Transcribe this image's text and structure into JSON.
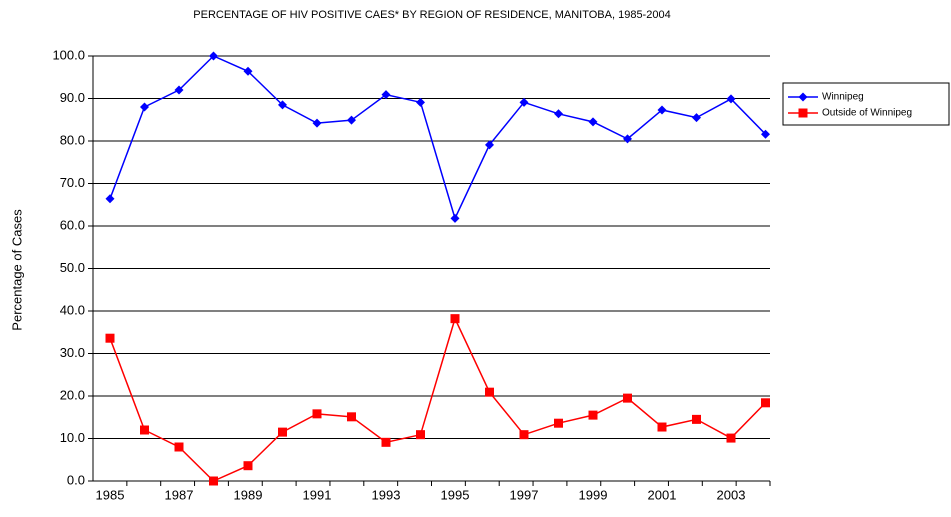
{
  "chart_data": {
    "type": "line",
    "title": "PERCENTAGE OF HIV POSITIVE CAES* BY REGION OF RESIDENCE, MANITOBA, 1985-2004",
    "y_label": "Percentage of Cases",
    "categories": [
      "1985",
      null,
      "1987",
      null,
      "1989",
      null,
      "1991",
      null,
      "1993",
      null,
      "1995",
      null,
      "1997",
      null,
      "1999",
      null,
      "2001",
      null,
      "2003",
      null
    ],
    "series": [
      {
        "name": "Winnipeg",
        "color": "#0000ff",
        "marker": "diamond",
        "values": [
          66.4,
          88.0,
          92.0,
          100.0,
          96.4,
          88.5,
          84.2,
          84.9,
          90.9,
          89.1,
          61.8,
          79.1,
          89.1,
          86.4,
          84.5,
          80.5,
          87.3,
          85.5,
          89.9,
          81.6
        ]
      },
      {
        "name": "Outside of Winnipeg",
        "color": "#ff0000",
        "marker": "square",
        "values": [
          33.6,
          12.0,
          8.0,
          0.0,
          3.6,
          11.5,
          15.8,
          15.1,
          9.1,
          10.9,
          38.2,
          20.9,
          10.9,
          13.6,
          15.5,
          19.5,
          12.7,
          14.5,
          10.1,
          18.4
        ]
      }
    ],
    "ylim": [
      0,
      100
    ],
    "yticks": [
      {
        "value": 0,
        "label": "0.0"
      },
      {
        "value": 10,
        "label": "10.0"
      },
      {
        "value": 20,
        "label": "20.0"
      },
      {
        "value": 30,
        "label": "30.0"
      },
      {
        "value": 40,
        "label": "40.0"
      },
      {
        "value": 50,
        "label": "50.0"
      },
      {
        "value": 60,
        "label": "60.0"
      },
      {
        "value": 70,
        "label": "70.0"
      },
      {
        "value": 80,
        "label": "80.0"
      },
      {
        "value": 90,
        "label": "90.0"
      },
      {
        "value": 100,
        "label": "100.0"
      }
    ],
    "grid": true,
    "legend": "right"
  }
}
